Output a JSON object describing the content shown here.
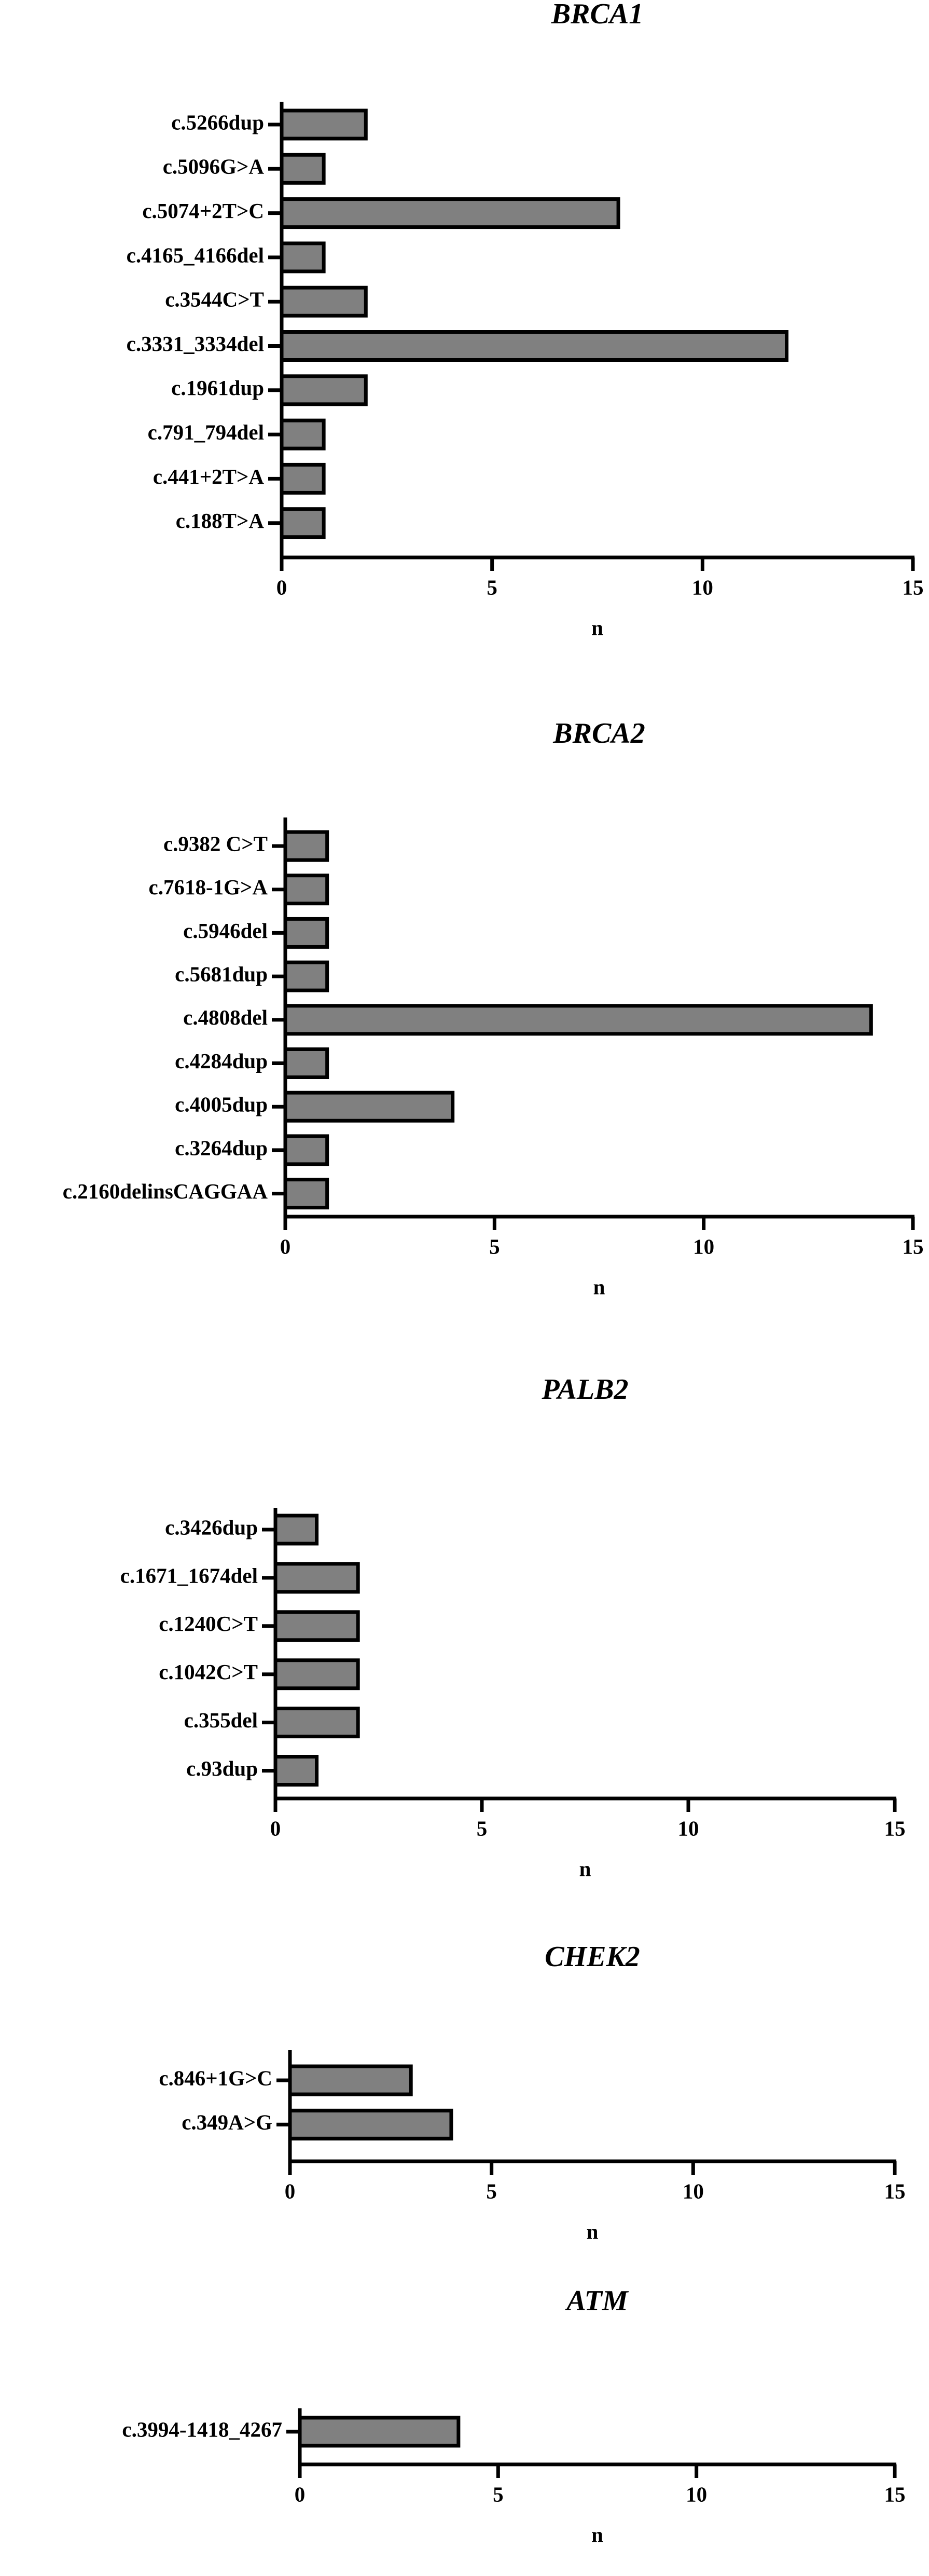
{
  "chart_data": [
    {
      "type": "barh",
      "title": "BRCA1",
      "xlabel": "n",
      "color": "#808080",
      "categories": [
        "c.5266dup",
        "c.5096G>A",
        "c.5074+2T>C",
        "c.4165_4166del",
        "c.3544C>T",
        "c.3331_3334del",
        "c.1961dup",
        "c.791_794del",
        "c.441+2T>A",
        "c.188T>A"
      ],
      "values": [
        2,
        1,
        8,
        1,
        2,
        12,
        2,
        1,
        1,
        1
      ],
      "xlim": [
        0,
        15
      ],
      "xticks": [
        0,
        5,
        10,
        15
      ]
    },
    {
      "type": "barh",
      "title": "BRCA2",
      "xlabel": "n",
      "color": "#808080",
      "categories": [
        "c.9382 C>T",
        "c.7618-1G>A",
        "c.5946del",
        "c.5681dup",
        "c.4808del",
        "c.4284dup",
        "c.4005dup",
        "c.3264dup",
        "c.2160delinsCAGGAA"
      ],
      "values": [
        1,
        1,
        1,
        1,
        14,
        1,
        4,
        1,
        1
      ],
      "xlim": [
        0,
        15
      ],
      "xticks": [
        0,
        5,
        10,
        15
      ]
    },
    {
      "type": "barh",
      "title": "PALB2",
      "xlabel": "n",
      "color": "#808080",
      "categories": [
        "c.3426dup",
        "c.1671_1674del",
        "c.1240C>T",
        "c.1042C>T",
        "c.355del",
        "c.93dup"
      ],
      "values": [
        1,
        2,
        2,
        2,
        2,
        1
      ],
      "xlim": [
        0,
        15
      ],
      "xticks": [
        0,
        5,
        10,
        15
      ]
    },
    {
      "type": "barh",
      "title": "CHEK2",
      "xlabel": "n",
      "color": "#808080",
      "categories": [
        "c.846+1G>C",
        "c.349A>G"
      ],
      "values": [
        3,
        4
      ],
      "xlim": [
        0,
        15
      ],
      "xticks": [
        0,
        5,
        10,
        15
      ]
    },
    {
      "type": "barh",
      "title": "ATM",
      "xlabel": "n",
      "color": "#808080",
      "categories": [
        "c.3994-1418_4267"
      ],
      "values": [
        4
      ],
      "xlim": [
        0,
        15
      ],
      "xticks": [
        0,
        5,
        10,
        15
      ]
    }
  ]
}
